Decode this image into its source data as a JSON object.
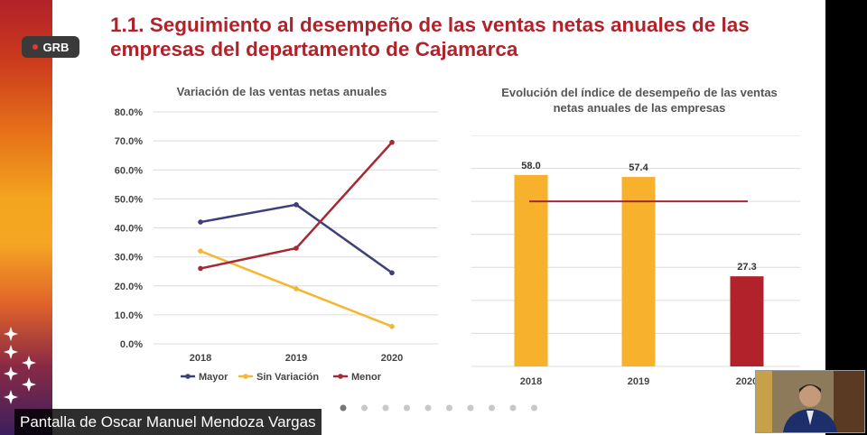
{
  "overlay": {
    "badge_label": "GRB",
    "screen_share_caption": "Pantalla de Oscar Manuel Mendoza Vargas",
    "participant_video": "webcam"
  },
  "slide": {
    "title": "1.1. Seguimiento al desempeño de las ventas netas anuales de las empresas del departamento de Cajamarca",
    "pager": {
      "total_dots": 10,
      "active_index": 0
    }
  },
  "colors": {
    "title": "#b1222a",
    "mayor": "#3e3e79",
    "sin_variacion": "#f5b630",
    "menor": "#a52a35",
    "bar_gold": "#f8b12c",
    "bar_red": "#b1222a",
    "reference_line": "#a52a35"
  },
  "chart_data": [
    {
      "type": "line",
      "title": "Variación de las ventas netas anuales",
      "categories": [
        "2018",
        "2019",
        "2020"
      ],
      "yticks": [
        "80.0%",
        "70.0%",
        "60.0%",
        "50.0%",
        "40.0%",
        "30.0%",
        "20.0%",
        "10.0%",
        "0.0%"
      ],
      "ylim": [
        0,
        80
      ],
      "grid": true,
      "legend": "bottom",
      "series": [
        {
          "name": "Mayor",
          "values": [
            42,
            48,
            24.5
          ]
        },
        {
          "name": "Sin Variación",
          "values": [
            32,
            19,
            6
          ]
        },
        {
          "name": "Menor",
          "values": [
            26,
            33,
            69.5
          ]
        }
      ]
    },
    {
      "type": "bar",
      "title": "Evolución del índice de desempeño de las ventas netas anuales de las empresas",
      "categories": [
        "2018",
        "2019",
        "2020"
      ],
      "values": [
        58.0,
        57.4,
        27.3
      ],
      "value_labels": [
        "58.0",
        "57.4",
        "27.3"
      ],
      "reference_value": 50,
      "ylim": [
        0,
        70
      ],
      "grid": true
    }
  ]
}
